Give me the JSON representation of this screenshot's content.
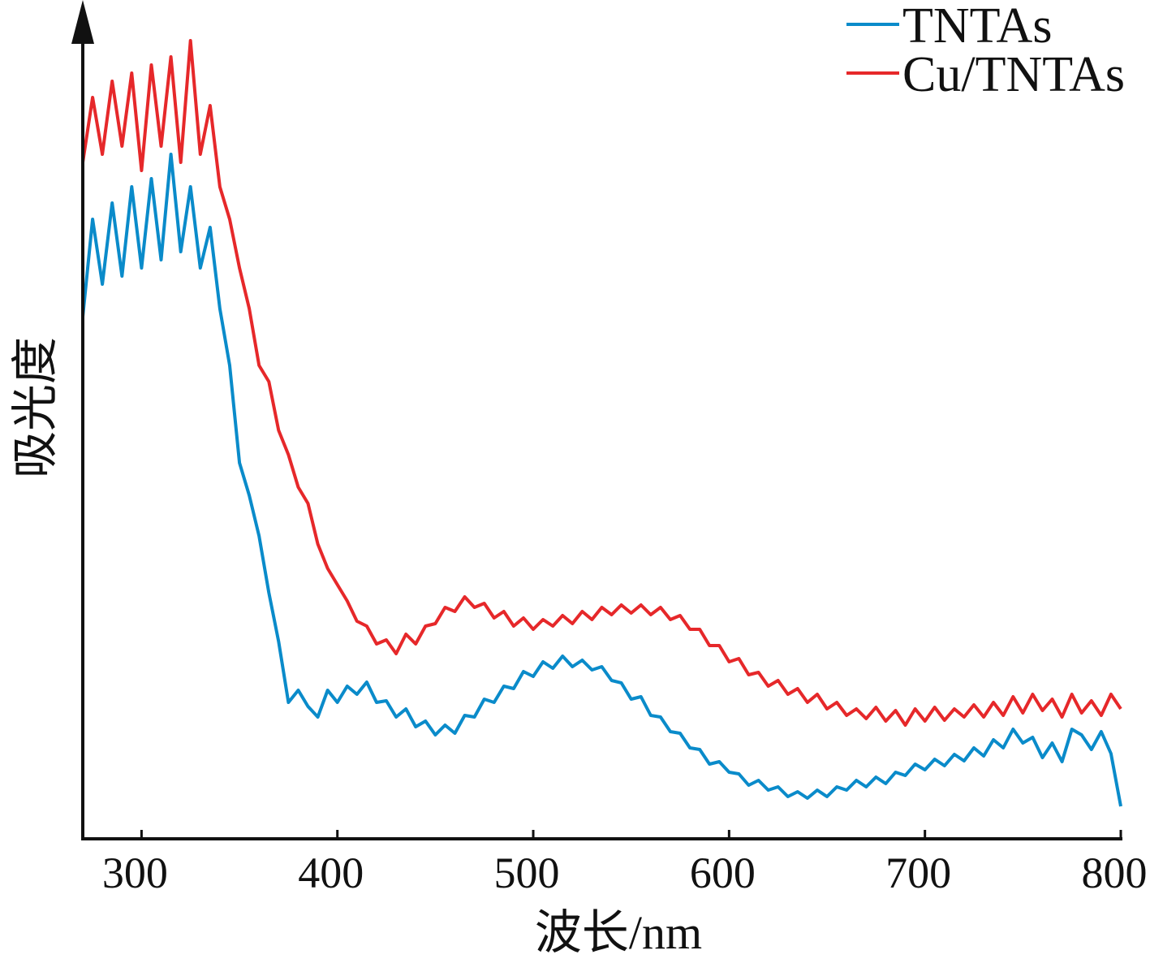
{
  "chart_data": {
    "type": "line",
    "xlabel": "波长/nm",
    "ylabel": "吸光度",
    "xlim": [
      270,
      800
    ],
    "ylim": [
      0,
      1
    ],
    "xticks": [
      300,
      400,
      500,
      600,
      700,
      800
    ],
    "yticks": [],
    "grid": false,
    "legend": "top-right",
    "x": [
      270,
      275,
      280,
      285,
      290,
      295,
      300,
      305,
      310,
      315,
      320,
      325,
      330,
      335,
      340,
      345,
      350,
      355,
      360,
      365,
      370,
      375,
      380,
      385,
      390,
      395,
      400,
      405,
      410,
      415,
      420,
      425,
      430,
      435,
      440,
      445,
      450,
      455,
      460,
      465,
      470,
      475,
      480,
      485,
      490,
      495,
      500,
      505,
      510,
      515,
      520,
      525,
      530,
      535,
      540,
      545,
      550,
      555,
      560,
      565,
      570,
      575,
      580,
      585,
      590,
      595,
      600,
      605,
      610,
      615,
      620,
      625,
      630,
      635,
      640,
      645,
      650,
      655,
      660,
      665,
      670,
      675,
      680,
      685,
      690,
      695,
      700,
      705,
      710,
      715,
      720,
      725,
      730,
      735,
      740,
      745,
      750,
      755,
      760,
      765,
      770,
      775,
      780,
      785,
      790,
      795,
      800
    ],
    "series": [
      {
        "name": "TNTAs",
        "color": "#0a8bca",
        "values": [
          0.643,
          0.763,
          0.683,
          0.783,
          0.693,
          0.803,
          0.703,
          0.813,
          0.713,
          0.843,
          0.723,
          0.803,
          0.703,
          0.753,
          0.653,
          0.583,
          0.463,
          0.423,
          0.373,
          0.303,
          0.243,
          0.168,
          0.183,
          0.163,
          0.15,
          0.183,
          0.168,
          0.188,
          0.178,
          0.193,
          0.168,
          0.17,
          0.15,
          0.16,
          0.138,
          0.145,
          0.128,
          0.14,
          0.13,
          0.152,
          0.15,
          0.172,
          0.168,
          0.188,
          0.185,
          0.206,
          0.2,
          0.218,
          0.21,
          0.225,
          0.212,
          0.22,
          0.208,
          0.212,
          0.195,
          0.192,
          0.172,
          0.175,
          0.152,
          0.15,
          0.132,
          0.13,
          0.112,
          0.11,
          0.092,
          0.095,
          0.082,
          0.08,
          0.066,
          0.072,
          0.06,
          0.064,
          0.052,
          0.058,
          0.05,
          0.06,
          0.052,
          0.064,
          0.06,
          0.072,
          0.064,
          0.076,
          0.068,
          0.082,
          0.078,
          0.092,
          0.085,
          0.098,
          0.09,
          0.104,
          0.096,
          0.112,
          0.102,
          0.122,
          0.112,
          0.135,
          0.118,
          0.125,
          0.1,
          0.118,
          0.095,
          0.135,
          0.128,
          0.11,
          0.132,
          0.105,
          0.04
        ]
      },
      {
        "name": "Cu/TNTAs",
        "color": "#e6282a",
        "values": [
          0.833,
          0.913,
          0.843,
          0.933,
          0.853,
          0.943,
          0.823,
          0.953,
          0.853,
          0.963,
          0.833,
          0.983,
          0.843,
          0.903,
          0.803,
          0.763,
          0.703,
          0.653,
          0.583,
          0.563,
          0.503,
          0.473,
          0.433,
          0.413,
          0.363,
          0.333,
          0.313,
          0.293,
          0.268,
          0.262,
          0.24,
          0.245,
          0.228,
          0.252,
          0.24,
          0.262,
          0.265,
          0.285,
          0.28,
          0.298,
          0.285,
          0.29,
          0.272,
          0.28,
          0.262,
          0.272,
          0.258,
          0.27,
          0.262,
          0.275,
          0.265,
          0.28,
          0.27,
          0.285,
          0.276,
          0.288,
          0.278,
          0.288,
          0.276,
          0.285,
          0.27,
          0.275,
          0.258,
          0.258,
          0.238,
          0.238,
          0.218,
          0.222,
          0.202,
          0.205,
          0.188,
          0.195,
          0.178,
          0.185,
          0.168,
          0.178,
          0.16,
          0.168,
          0.152,
          0.16,
          0.148,
          0.162,
          0.145,
          0.158,
          0.14,
          0.16,
          0.145,
          0.162,
          0.146,
          0.16,
          0.15,
          0.165,
          0.15,
          0.168,
          0.152,
          0.175,
          0.155,
          0.178,
          0.158,
          0.172,
          0.15,
          0.178,
          0.155,
          0.17,
          0.152,
          0.178,
          0.16
        ]
      }
    ]
  }
}
